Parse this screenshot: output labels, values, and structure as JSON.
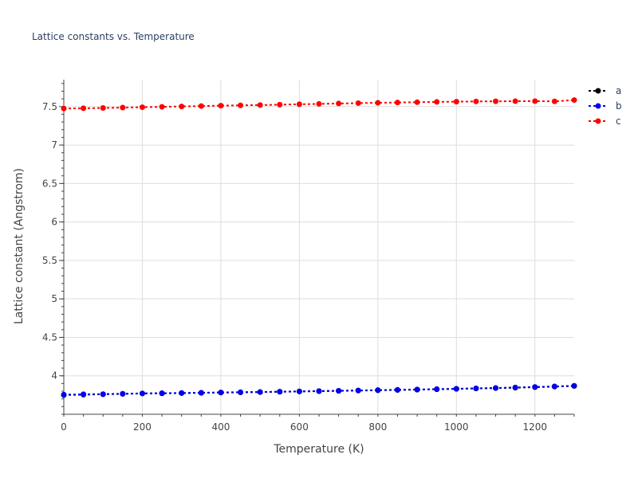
{
  "chart_data": {
    "type": "line",
    "title": "Lattice constants vs. Temperature",
    "xlabel": "Temperature (K)",
    "ylabel": "Lattice constant (Angstrom)",
    "xlim": [
      0,
      1300
    ],
    "ylim": [
      3.5,
      7.85
    ],
    "x_ticks": [
      0,
      200,
      400,
      600,
      800,
      1000,
      1200
    ],
    "y_ticks": [
      4,
      4.5,
      5,
      5.5,
      6,
      6.5,
      7,
      7.5
    ],
    "grid": true,
    "legend_position": "top-right",
    "x": [
      0,
      50,
      100,
      150,
      200,
      250,
      300,
      350,
      400,
      450,
      500,
      550,
      600,
      650,
      700,
      750,
      800,
      850,
      900,
      950,
      1000,
      1050,
      1100,
      1150,
      1200,
      1250,
      1300
    ],
    "series": [
      {
        "name": "a",
        "color": "#000000",
        "values": [
          3.75,
          3.755,
          3.76,
          3.765,
          3.77,
          3.772,
          3.775,
          3.778,
          3.782,
          3.785,
          3.788,
          3.792,
          3.796,
          3.8,
          3.804,
          3.808,
          3.812,
          3.816,
          3.82,
          3.825,
          3.83,
          3.835,
          3.84,
          3.845,
          3.852,
          3.86,
          3.868
        ]
      },
      {
        "name": "b",
        "color": "#0000ee",
        "values": [
          3.755,
          3.76,
          3.762,
          3.767,
          3.771,
          3.774,
          3.777,
          3.78,
          3.784,
          3.787,
          3.79,
          3.794,
          3.798,
          3.802,
          3.806,
          3.81,
          3.814,
          3.818,
          3.822,
          3.827,
          3.832,
          3.837,
          3.842,
          3.848,
          3.855,
          3.862,
          3.87
        ]
      },
      {
        "name": "c",
        "color": "#ff0000",
        "values": [
          7.475,
          7.478,
          7.482,
          7.487,
          7.492,
          7.497,
          7.502,
          7.507,
          7.512,
          7.516,
          7.52,
          7.525,
          7.53,
          7.535,
          7.54,
          7.545,
          7.549,
          7.553,
          7.557,
          7.561,
          7.564,
          7.567,
          7.569,
          7.57,
          7.571,
          7.568,
          7.585
        ]
      }
    ]
  }
}
